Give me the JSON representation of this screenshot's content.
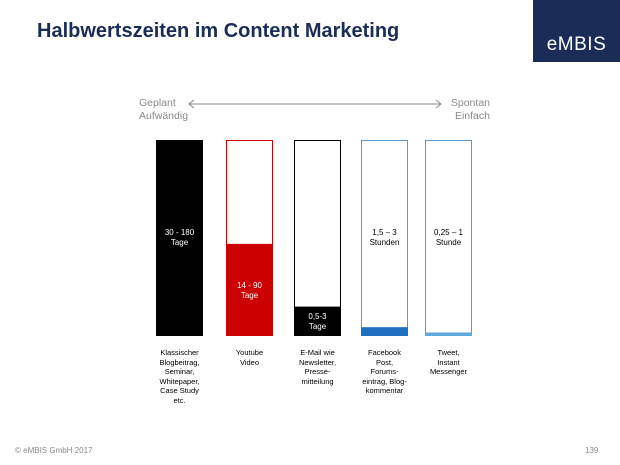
{
  "slide": {
    "title": "Halbwertszeiten im Content Marketing",
    "logo": "eMBIS",
    "scale_left": [
      "Geplant",
      "Aufwändig"
    ],
    "scale_right": [
      "Spontan",
      "Einfach"
    ],
    "footer_left": "© eMBIS GmbH 2017",
    "page_number": "139"
  },
  "colors": {
    "title": "#1b2c56",
    "logo_bg": "#1b2c56",
    "black": "#000000",
    "red": "#cc0000",
    "blue": "#1f70c1",
    "light_blue": "#5fa8dc"
  },
  "chart_data": {
    "type": "bar",
    "note_fill": "fraction of each column that is filled",
    "bars": [
      {
        "value_label": [
          "30 - 180",
          "Tage"
        ],
        "fill_fraction": 1.0,
        "fill_color": "#000000",
        "border_color": "#000000",
        "label_color": "#ffffff",
        "category": [
          "Klassischer",
          "Blogbeitrag,",
          "Seminar,",
          "Whitepaper,",
          "Case Study",
          "etc."
        ]
      },
      {
        "value_label": [
          "14 - 90",
          "Tage"
        ],
        "fill_fraction": 0.47,
        "fill_color": "#cc0000",
        "border_color": "#cc0000",
        "label_color": "#ffffff",
        "category": [
          "Youtube",
          "Video"
        ]
      },
      {
        "value_label": [
          "0,5-3",
          "Tage"
        ],
        "fill_fraction": 0.15,
        "fill_color": "#000000",
        "border_color": "#000000",
        "label_color": "#ffffff",
        "category": [
          "E-Mail wie",
          "Newsletter,",
          "Presse-",
          "mitteilung"
        ]
      },
      {
        "value_label": [
          "1,5 – 3",
          "Stunden"
        ],
        "fill_fraction": 0.045,
        "fill_color": "#1f70c1",
        "border_color": "#5b9bd5",
        "label_color": "#000000",
        "category": [
          "Facebook",
          "Post,",
          "Forums-",
          "eintrag, Blog-",
          "kommentar"
        ]
      },
      {
        "value_label": [
          "0,25 – 1",
          "Stunde"
        ],
        "fill_fraction": 0.018,
        "fill_color": "#5fa8dc",
        "border_color": "#5b9bd5",
        "label_color": "#000000",
        "category": [
          "Tweet,",
          "Instant",
          "Messenger"
        ]
      }
    ]
  }
}
